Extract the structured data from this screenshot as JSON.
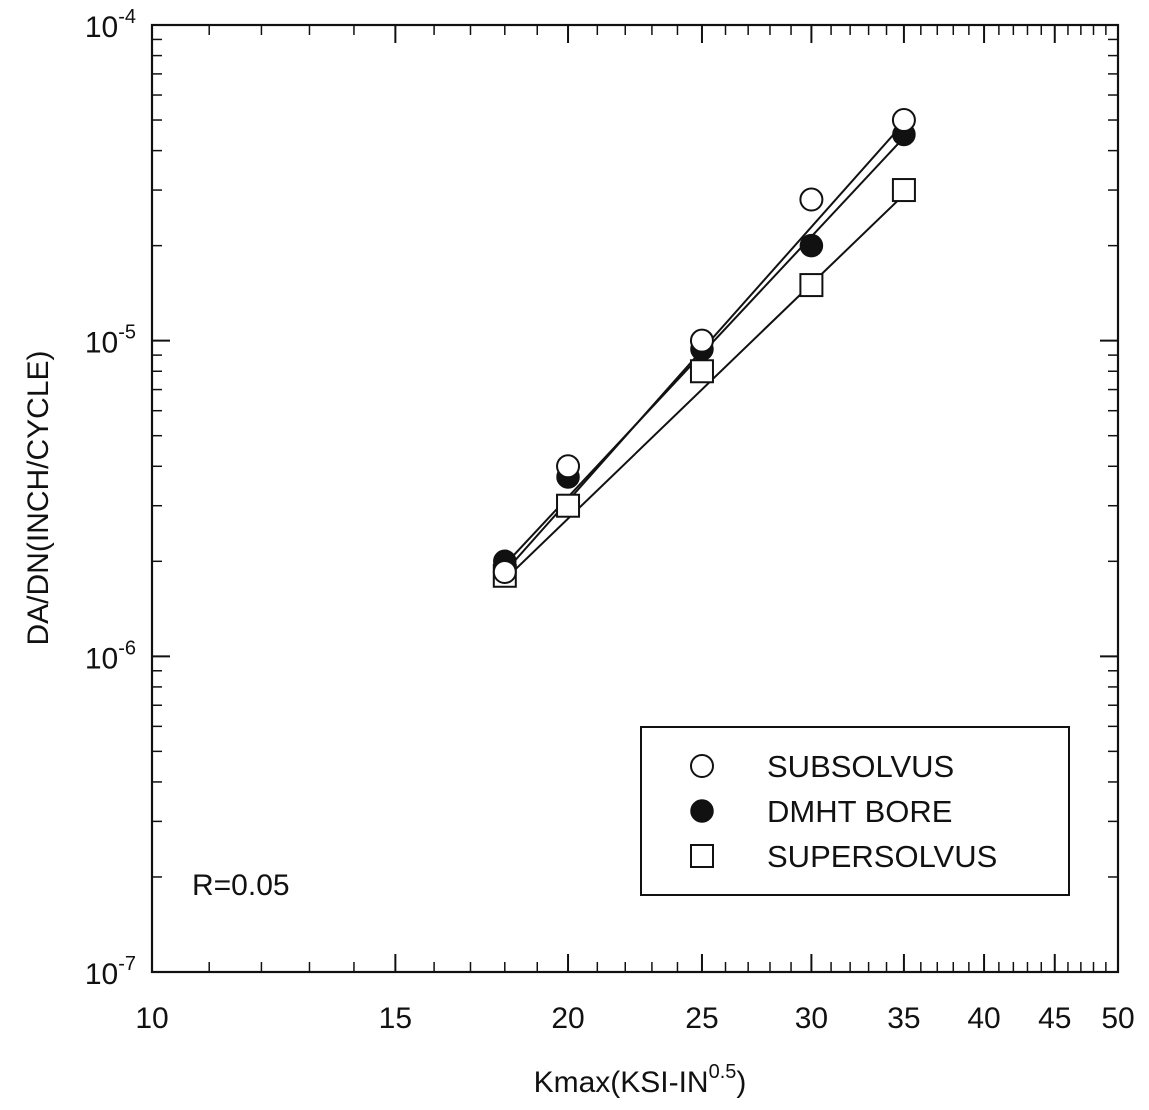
{
  "chart_data": {
    "type": "scatter",
    "x_scale": "log",
    "y_scale": "log",
    "xlim": [
      10,
      50
    ],
    "ylim": [
      1e-07,
      0.0001
    ],
    "xlabel": {
      "base": "Kmax(KSI-IN",
      "sup": "0.5",
      "tail": ")"
    },
    "ylabel": "DA/DN(INCH/CYCLE)",
    "x_tick_labels": [
      {
        "value": 10,
        "label": "10"
      },
      {
        "value": 15,
        "label": "15"
      },
      {
        "value": 20,
        "label": "20"
      },
      {
        "value": 25,
        "label": "25"
      },
      {
        "value": 30,
        "label": "30"
      },
      {
        "value": 35,
        "label": "35"
      },
      {
        "value": 40,
        "label": "40"
      },
      {
        "value": 45,
        "label": "45"
      },
      {
        "value": 50,
        "label": "50"
      }
    ],
    "y_tick_labels": [
      {
        "value": 0.0001,
        "base": "10",
        "exp": "-4"
      },
      {
        "value": 1e-05,
        "base": "10",
        "exp": "-5"
      },
      {
        "value": 1e-06,
        "base": "10",
        "exp": "-6"
      },
      {
        "value": 1e-07,
        "base": "10",
        "exp": "-7"
      }
    ],
    "grid": false,
    "legend_placement": "bottom-right",
    "annotation": "R=0.05",
    "series": [
      {
        "name": "SUBSOLVUS",
        "marker": "open-circle",
        "x": [
          18,
          20,
          25,
          30,
          35
        ],
        "y": [
          1.85e-06,
          4e-06,
          1e-05,
          2.8e-05,
          5e-05
        ],
        "fit": {
          "x": [
            18,
            35
          ],
          "y": [
            1.85e-06,
            4.9e-05
          ]
        }
      },
      {
        "name": "DMHT BORE",
        "marker": "filled-circle",
        "x": [
          18,
          20,
          25,
          30,
          35
        ],
        "y": [
          2e-06,
          3.7e-06,
          9.4e-06,
          2e-05,
          4.5e-05
        ],
        "fit": {
          "x": [
            18,
            35
          ],
          "y": [
            1.95e-06,
            4.4e-05
          ]
        }
      },
      {
        "name": "SUPERSOLVUS",
        "marker": "open-square",
        "x": [
          18,
          20,
          25,
          30,
          35
        ],
        "y": [
          1.8e-06,
          3e-06,
          8e-06,
          1.5e-05,
          3e-05
        ],
        "fit": {
          "x": [
            18,
            35
          ],
          "y": [
            1.75e-06,
            2.9e-05
          ]
        }
      }
    ],
    "colors": {
      "ink": "#111111",
      "background": "#ffffff"
    }
  }
}
